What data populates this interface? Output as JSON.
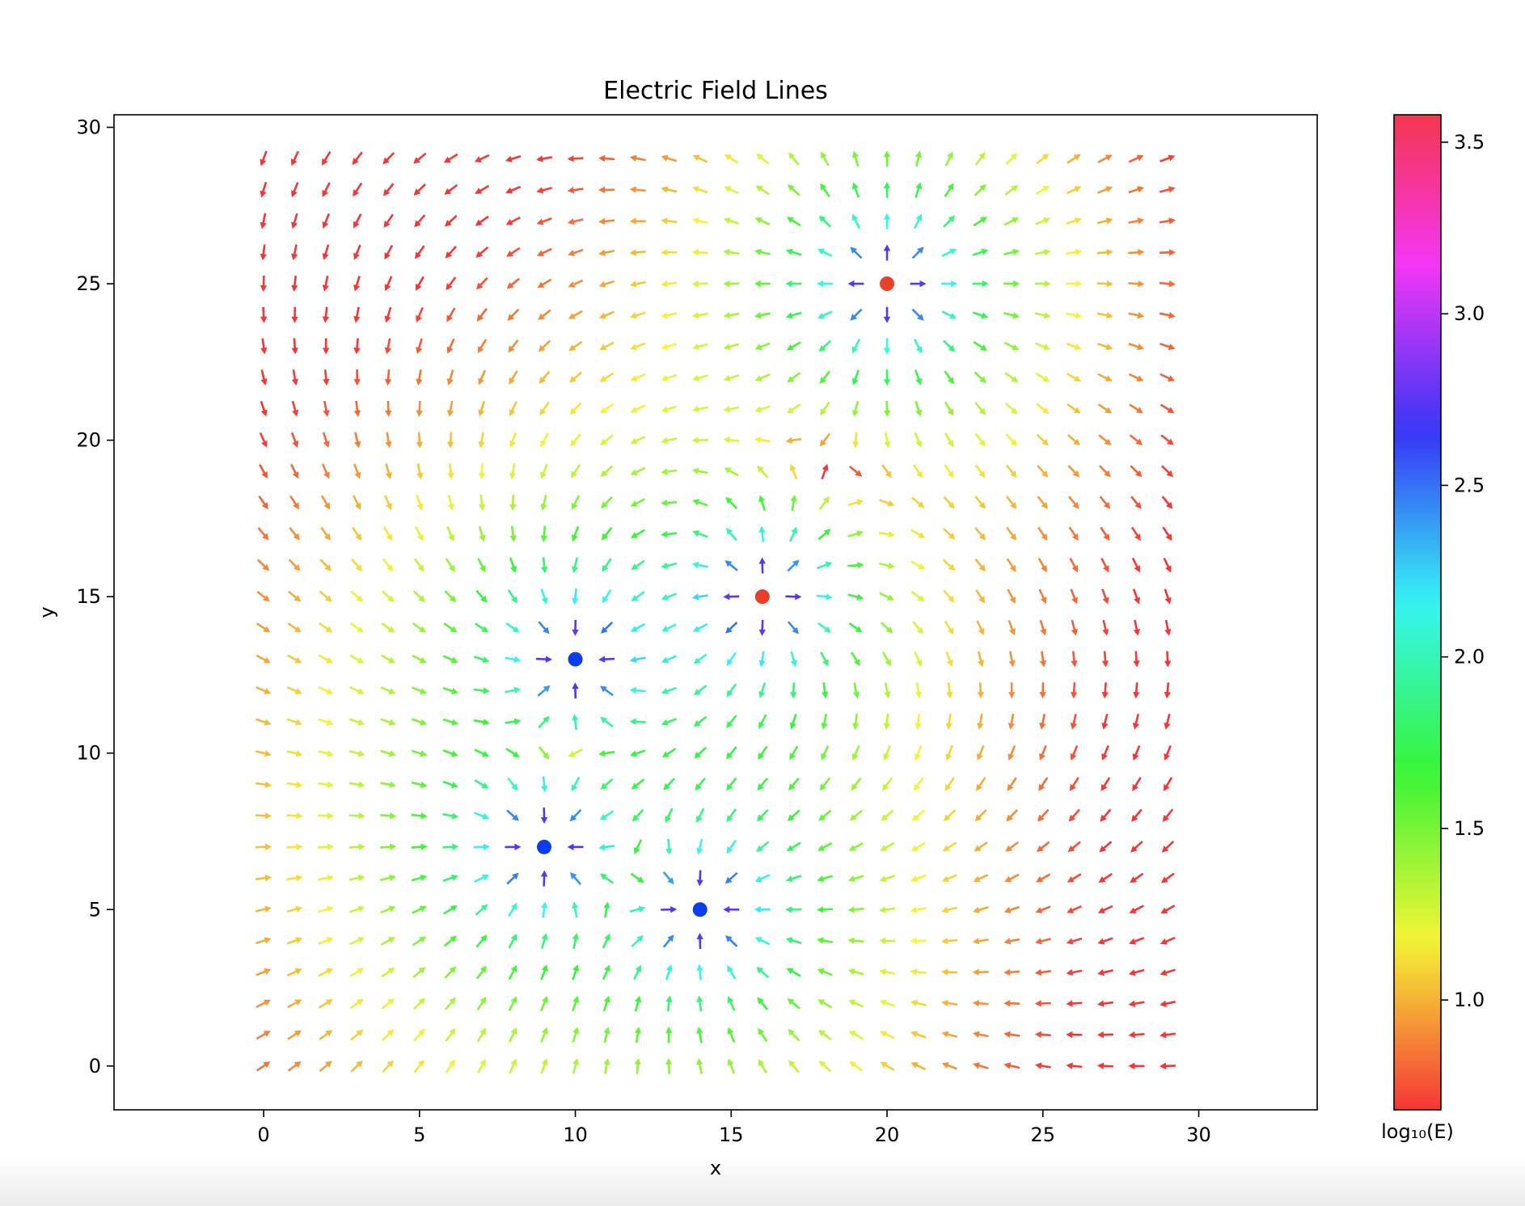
{
  "chart_data": {
    "type": "quiver",
    "title": "Electric Field Lines",
    "xlabel": "x",
    "ylabel": "y",
    "xlim": [
      -4.8,
      33.8
    ],
    "ylim": [
      -1.4,
      30.4
    ],
    "xticks": [
      0,
      5,
      10,
      15,
      20,
      25,
      30
    ],
    "yticks": [
      0,
      5,
      10,
      15,
      20,
      25,
      30
    ],
    "grid": {
      "x_start": 0,
      "x_end": 29,
      "y_start": 0,
      "y_end": 29,
      "step": 1
    },
    "charges": [
      {
        "x": 10,
        "y": 13,
        "sign": "negative",
        "color": "#0a3cf0"
      },
      {
        "x": 9,
        "y": 7,
        "sign": "negative",
        "color": "#0a3cf0"
      },
      {
        "x": 14,
        "y": 5,
        "sign": "negative",
        "color": "#0a3cf0"
      },
      {
        "x": 16,
        "y": 15,
        "sign": "positive",
        "color": "#e8402a"
      },
      {
        "x": 20,
        "y": 25,
        "sign": "positive",
        "color": "#e8402a"
      }
    ],
    "arrow_direction": "field points from positive charges toward negative charges",
    "colormap": "hsv",
    "colorbar": {
      "label": "log₁₀(E)",
      "range": [
        0.68,
        3.58
      ],
      "ticks": [
        1.0,
        1.5,
        2.0,
        2.5,
        3.0,
        3.5
      ],
      "tick_labels": [
        "1.0",
        "1.5",
        "2.0",
        "2.5",
        "3.0",
        "3.5"
      ]
    }
  }
}
